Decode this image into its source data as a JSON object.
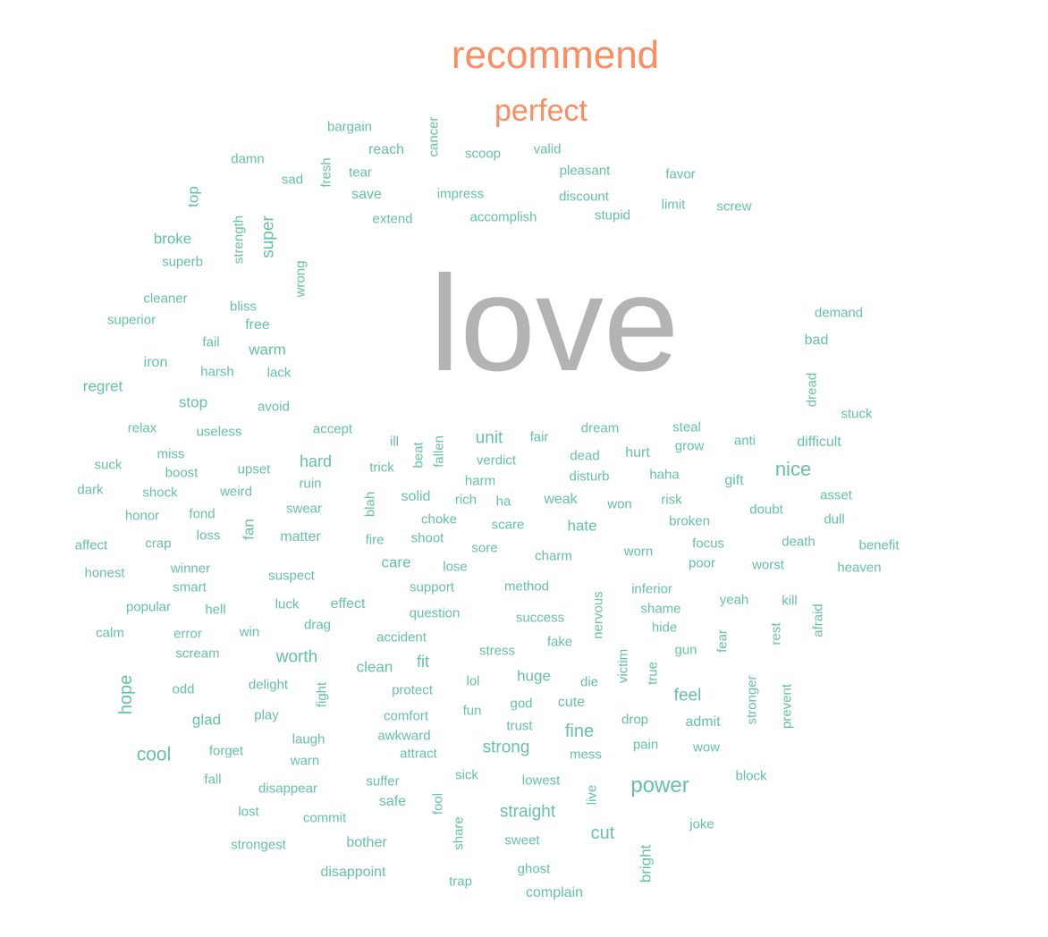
{
  "colors": {
    "green": "#66c2a5",
    "orange": "#fc8d62",
    "grey": "#b3b3b3"
  },
  "words": [
    {
      "text": "recommend",
      "color": "orange"
    },
    {
      "text": "perfect",
      "color": "orange"
    },
    {
      "text": "love",
      "color": "grey"
    },
    {
      "text": "bargain"
    },
    {
      "text": "cancer"
    },
    {
      "text": "reach"
    },
    {
      "text": "scoop"
    },
    {
      "text": "valid"
    },
    {
      "text": "pleasant"
    },
    {
      "text": "favor"
    },
    {
      "text": "damn"
    },
    {
      "text": "sad"
    },
    {
      "text": "fresh"
    },
    {
      "text": "tear"
    },
    {
      "text": "top"
    },
    {
      "text": "save"
    },
    {
      "text": "impress"
    },
    {
      "text": "discount"
    },
    {
      "text": "limit"
    },
    {
      "text": "screw"
    },
    {
      "text": "extend"
    },
    {
      "text": "accomplish"
    },
    {
      "text": "stupid"
    },
    {
      "text": "strength"
    },
    {
      "text": "super"
    },
    {
      "text": "broke"
    },
    {
      "text": "superb"
    },
    {
      "text": "wrong"
    },
    {
      "text": "cleaner"
    },
    {
      "text": "bliss"
    },
    {
      "text": "demand"
    },
    {
      "text": "superior"
    },
    {
      "text": "free"
    },
    {
      "text": "bad"
    },
    {
      "text": "fail"
    },
    {
      "text": "warm"
    },
    {
      "text": "iron"
    },
    {
      "text": "harsh"
    },
    {
      "text": "lack"
    },
    {
      "text": "dread"
    },
    {
      "text": "regret"
    },
    {
      "text": "stop"
    },
    {
      "text": "avoid"
    },
    {
      "text": "stuck"
    },
    {
      "text": "relax"
    },
    {
      "text": "useless"
    },
    {
      "text": "accept"
    },
    {
      "text": "ill"
    },
    {
      "text": "beat"
    },
    {
      "text": "fallen"
    },
    {
      "text": "unit"
    },
    {
      "text": "fair"
    },
    {
      "text": "dream"
    },
    {
      "text": "steal"
    },
    {
      "text": "anti"
    },
    {
      "text": "difficult"
    },
    {
      "text": "miss"
    },
    {
      "text": "grow"
    },
    {
      "text": "suck"
    },
    {
      "text": "boost"
    },
    {
      "text": "upset"
    },
    {
      "text": "hard"
    },
    {
      "text": "trick"
    },
    {
      "text": "verdict"
    },
    {
      "text": "dead"
    },
    {
      "text": "hurt"
    },
    {
      "text": "nice"
    },
    {
      "text": "disturb"
    },
    {
      "text": "haha"
    },
    {
      "text": "gift"
    },
    {
      "text": "dark"
    },
    {
      "text": "shock"
    },
    {
      "text": "weird"
    },
    {
      "text": "ruin"
    },
    {
      "text": "harm"
    },
    {
      "text": "asset"
    },
    {
      "text": "blah"
    },
    {
      "text": "solid"
    },
    {
      "text": "rich"
    },
    {
      "text": "ha"
    },
    {
      "text": "weak"
    },
    {
      "text": "won"
    },
    {
      "text": "risk"
    },
    {
      "text": "doubt"
    },
    {
      "text": "honor"
    },
    {
      "text": "fond"
    },
    {
      "text": "swear"
    },
    {
      "text": "choke"
    },
    {
      "text": "dull"
    },
    {
      "text": "fan"
    },
    {
      "text": "scare"
    },
    {
      "text": "hate"
    },
    {
      "text": "broken"
    },
    {
      "text": "affect"
    },
    {
      "text": "crap"
    },
    {
      "text": "loss"
    },
    {
      "text": "matter"
    },
    {
      "text": "fire"
    },
    {
      "text": "shoot"
    },
    {
      "text": "focus"
    },
    {
      "text": "death"
    },
    {
      "text": "benefit"
    },
    {
      "text": "sore"
    },
    {
      "text": "worn"
    },
    {
      "text": "charm"
    },
    {
      "text": "care"
    },
    {
      "text": "honest"
    },
    {
      "text": "winner"
    },
    {
      "text": "lose"
    },
    {
      "text": "poor"
    },
    {
      "text": "worst"
    },
    {
      "text": "heaven"
    },
    {
      "text": "suspect"
    },
    {
      "text": "smart"
    },
    {
      "text": "support"
    },
    {
      "text": "method"
    },
    {
      "text": "inferior"
    },
    {
      "text": "nervous"
    },
    {
      "text": "yeah"
    },
    {
      "text": "kill"
    },
    {
      "text": "popular"
    },
    {
      "text": "luck"
    },
    {
      "text": "effect"
    },
    {
      "text": "shame"
    },
    {
      "text": "afraid"
    },
    {
      "text": "hell"
    },
    {
      "text": "question"
    },
    {
      "text": "success"
    },
    {
      "text": "drag"
    },
    {
      "text": "hide"
    },
    {
      "text": "calm"
    },
    {
      "text": "error"
    },
    {
      "text": "win"
    },
    {
      "text": "rest"
    },
    {
      "text": "accident"
    },
    {
      "text": "fake"
    },
    {
      "text": "fear"
    },
    {
      "text": "scream"
    },
    {
      "text": "stress"
    },
    {
      "text": "gun"
    },
    {
      "text": "worth"
    },
    {
      "text": "victim"
    },
    {
      "text": "true"
    },
    {
      "text": "fit"
    },
    {
      "text": "clean"
    },
    {
      "text": "hope"
    },
    {
      "text": "huge"
    },
    {
      "text": "delight"
    },
    {
      "text": "lol"
    },
    {
      "text": "odd"
    },
    {
      "text": "protect"
    },
    {
      "text": "die"
    },
    {
      "text": "fight"
    },
    {
      "text": "feel"
    },
    {
      "text": "stronger"
    },
    {
      "text": "prevent"
    },
    {
      "text": "god"
    },
    {
      "text": "cute"
    },
    {
      "text": "glad"
    },
    {
      "text": "play"
    },
    {
      "text": "comfort"
    },
    {
      "text": "fun"
    },
    {
      "text": "admit"
    },
    {
      "text": "drop"
    },
    {
      "text": "trust"
    },
    {
      "text": "fine"
    },
    {
      "text": "laugh"
    },
    {
      "text": "awkward"
    },
    {
      "text": "forget"
    },
    {
      "text": "strong"
    },
    {
      "text": "pain"
    },
    {
      "text": "wow"
    },
    {
      "text": "cool"
    },
    {
      "text": "attract"
    },
    {
      "text": "mess"
    },
    {
      "text": "warn"
    },
    {
      "text": "sick"
    },
    {
      "text": "block"
    },
    {
      "text": "fall"
    },
    {
      "text": "suffer"
    },
    {
      "text": "lowest"
    },
    {
      "text": "disappear"
    },
    {
      "text": "power"
    },
    {
      "text": "live"
    },
    {
      "text": "safe"
    },
    {
      "text": "fool"
    },
    {
      "text": "lost"
    },
    {
      "text": "commit"
    },
    {
      "text": "straight"
    },
    {
      "text": "joke"
    },
    {
      "text": "share"
    },
    {
      "text": "cut"
    },
    {
      "text": "strongest"
    },
    {
      "text": "bother"
    },
    {
      "text": "sweet"
    },
    {
      "text": "bright"
    },
    {
      "text": "disappoint"
    },
    {
      "text": "ghost"
    },
    {
      "text": "trap"
    },
    {
      "text": "complain"
    }
  ]
}
